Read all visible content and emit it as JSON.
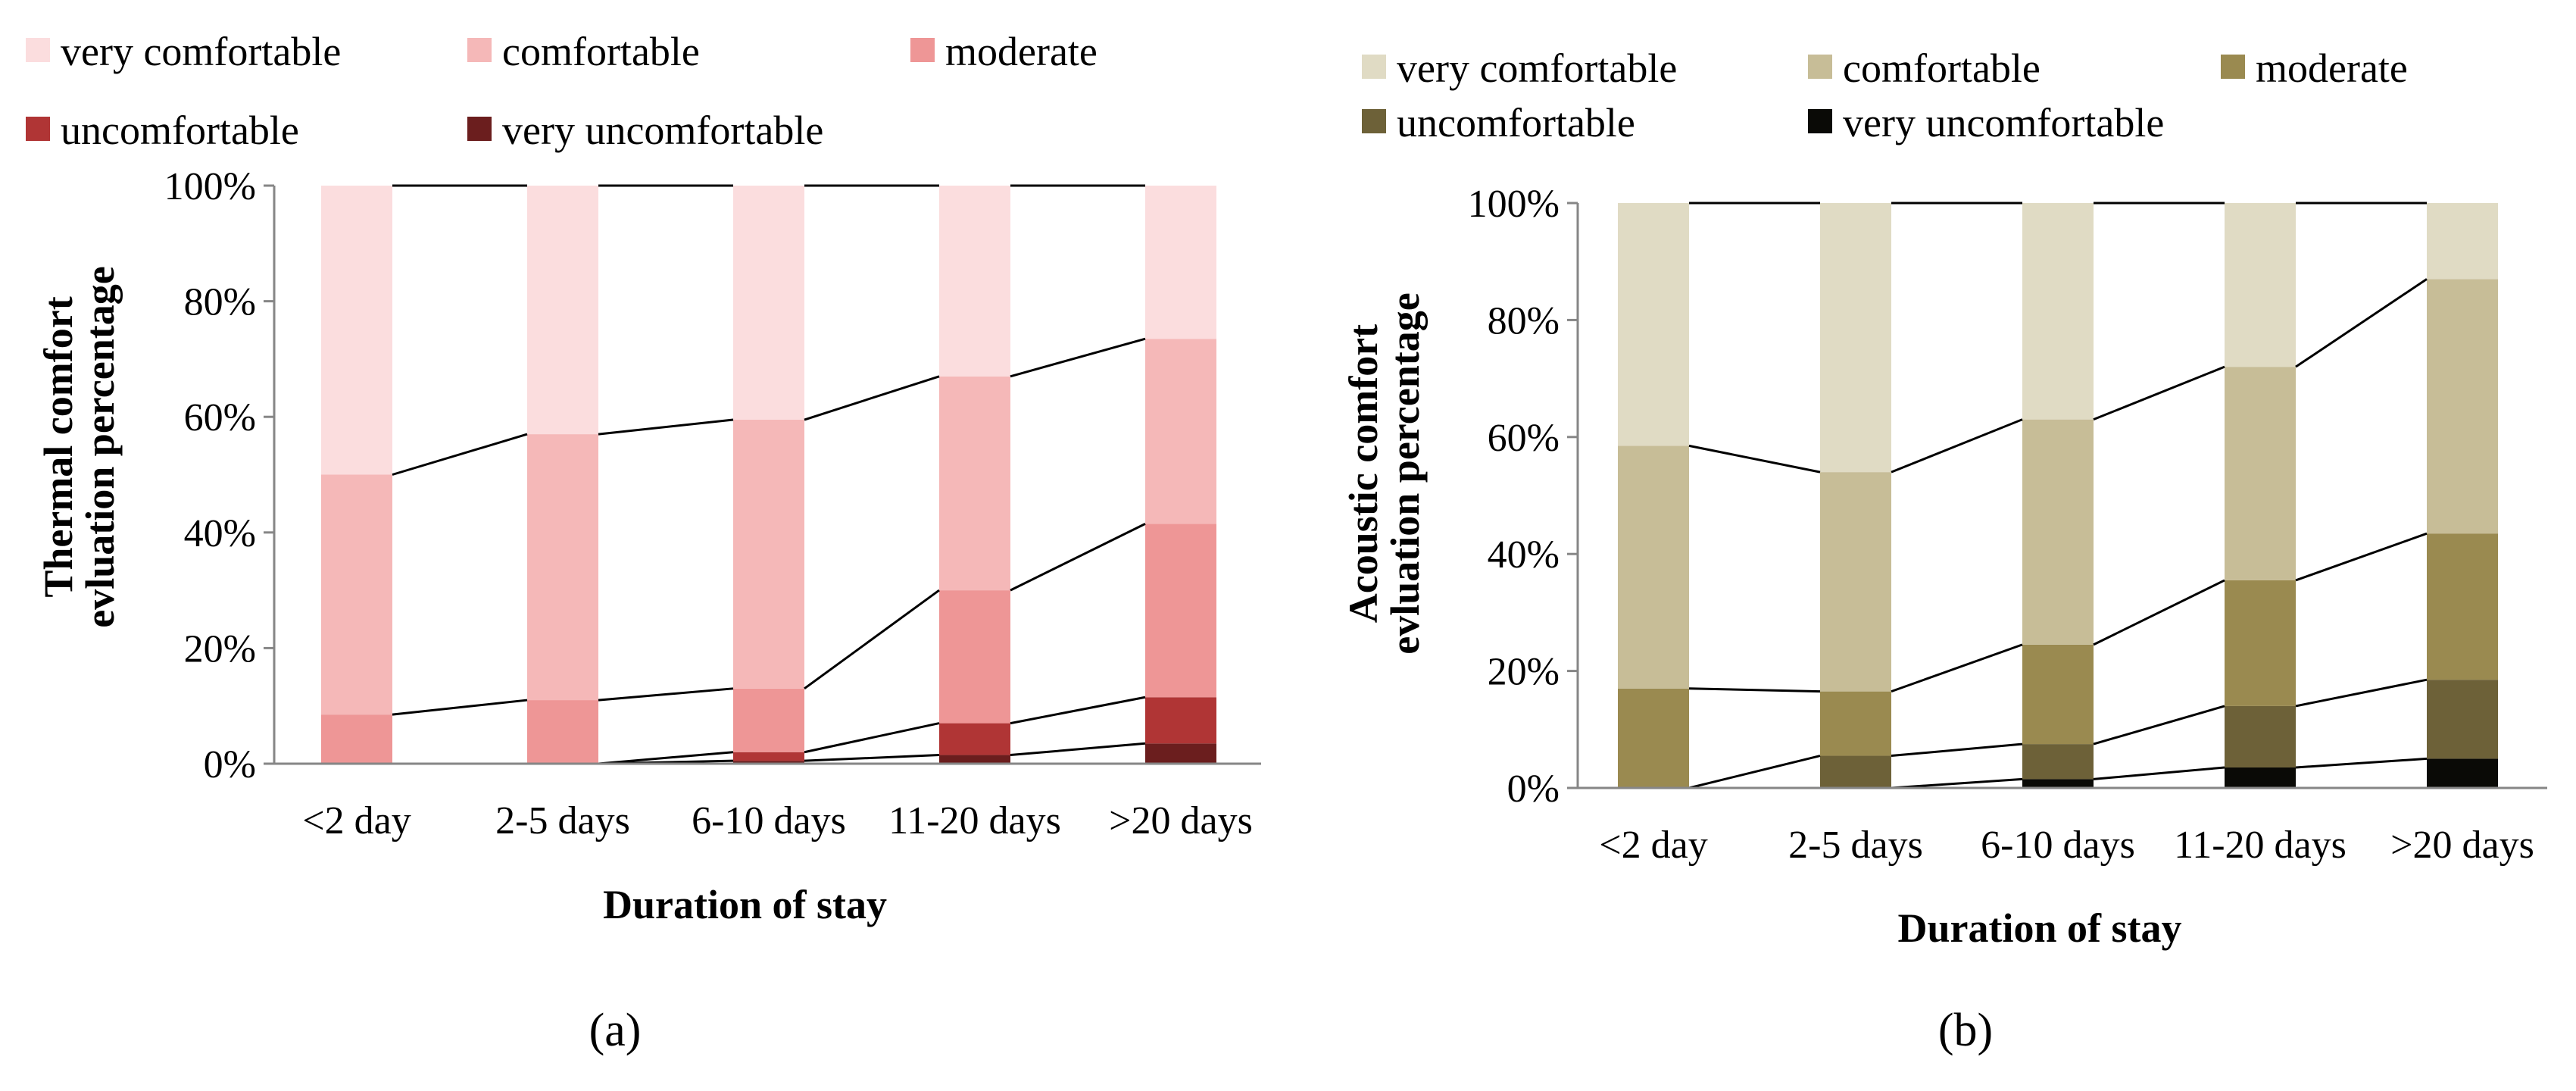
{
  "chart_data": [
    {
      "type": "bar",
      "stacked": true,
      "panel_label": "(a)",
      "title": "",
      "xlabel": "Duration of stay",
      "ylabel_lines": [
        "Thermal comfort",
        "evluation percentage"
      ],
      "categories": [
        "<2 day",
        "2-5 days",
        "6-10 days",
        "11-20 days",
        ">20 days"
      ],
      "yticks": [
        "0%",
        "20%",
        "40%",
        "60%",
        "80%",
        "100%"
      ],
      "ylim": [
        0,
        100
      ],
      "legend_position": "top",
      "series": [
        {
          "name": "very uncomfortable",
          "color": "#6B1E1E",
          "values": [
            0,
            0,
            0.5,
            1.5,
            3.5
          ]
        },
        {
          "name": "uncomfortable",
          "color": "#B03535",
          "values": [
            0,
            0,
            1.5,
            5.5,
            8
          ]
        },
        {
          "name": "moderate",
          "color": "#EE9696",
          "values": [
            8.5,
            11,
            11,
            23,
            30
          ]
        },
        {
          "name": "comfortable",
          "color": "#F5B8B8",
          "values": [
            41.5,
            46,
            46.5,
            37,
            32
          ]
        },
        {
          "name": "very comfortable",
          "color": "#FBDDDE",
          "values": [
            50,
            43,
            40.5,
            33,
            26.5
          ]
        }
      ]
    },
    {
      "type": "bar",
      "stacked": true,
      "panel_label": "(b)",
      "title": "",
      "xlabel": "Duration of stay",
      "ylabel_lines": [
        "Acoustic comfort",
        "evluation percentage"
      ],
      "categories": [
        "<2 day",
        "2-5 days",
        "6-10 days",
        "11-20 days",
        ">20 days"
      ],
      "yticks": [
        "0%",
        "20%",
        "40%",
        "60%",
        "80%",
        "100%"
      ],
      "ylim": [
        0,
        100
      ],
      "legend_position": "top",
      "series": [
        {
          "name": "very uncomfortable",
          "color": "#0A0A06",
          "values": [
            0,
            0,
            1.5,
            3.5,
            5
          ]
        },
        {
          "name": "uncomfortable",
          "color": "#6D6138",
          "values": [
            0,
            5.5,
            6,
            10.5,
            13.5
          ]
        },
        {
          "name": "moderate",
          "color": "#9A8A50",
          "values": [
            17,
            11,
            17,
            21.5,
            25
          ]
        },
        {
          "name": "comfortable",
          "color": "#C7BD97",
          "values": [
            41.5,
            37.5,
            38.5,
            36.5,
            43.5
          ]
        },
        {
          "name": "very comfortable",
          "color": "#E0DBC4",
          "values": [
            41.5,
            46,
            37,
            28,
            13
          ]
        }
      ]
    }
  ]
}
